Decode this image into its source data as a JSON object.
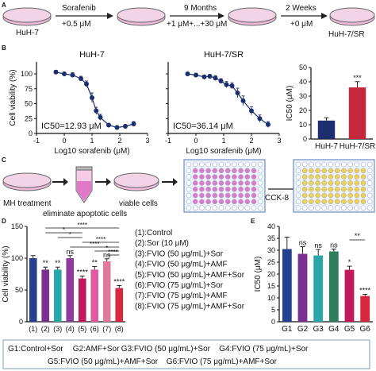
{
  "panel_letters": {
    "a": "A",
    "b": "B",
    "c": "C",
    "d": "D",
    "e": "E"
  },
  "panel_a": {
    "cells_start": "HuH-7",
    "step1_top": "Sorafenib",
    "step1_bottom": "+0.5 μM",
    "step2_top": "9 Months",
    "step2_bottom": "+1 μM+...+30 μM",
    "step3_top": "2 Weeks",
    "step3_bottom": "+0 μM",
    "cells_end": "HuH-7/SR"
  },
  "panel_c": {
    "dish1_label": "MH treatment",
    "tube_label": "eliminate apoptotic cells",
    "dish2_label": "viable cells",
    "assay_label": "CCK-8"
  },
  "colors": {
    "navy": "#1c2e6e",
    "red": "#c5283d",
    "pink": "#e07ac8",
    "yellow": "#f2d24a",
    "dish": "#e8b9d6"
  },
  "legend_e_line1": [
    {
      "text": "G1:Control+Sor",
      "color": "#24408e"
    },
    {
      "text": "G2:AMF+Sor",
      "color": "#7b2f8e"
    },
    {
      "text": "G3:FVIO (50 μg/mL)+Sor",
      "color": "#2aa6a8"
    },
    {
      "text": "G4:FVIO (75 μg/mL)+Sor",
      "color": "#d13a9b"
    }
  ],
  "legend_e_line2": [
    {
      "text": "G5:FVIO (50 μg/mL)+AMF+Sor",
      "color": "#c2185b"
    },
    {
      "text": "G6:FVIO (75 μg/mL)+AMF+Sor",
      "color": "#d7263d"
    }
  ],
  "chart_data": [
    {
      "type": "scatter",
      "panel": "B-left",
      "title": "HuH-7",
      "xlabel": "Log10 sorafenib (μM)",
      "ylabel": "Cell viability (%)",
      "xlim": [
        -1,
        3
      ],
      "ylim": [
        0,
        120
      ],
      "xticks": [
        "-1",
        "0",
        "1",
        "2",
        "3"
      ],
      "yticks": [
        "0",
        "25",
        "50",
        "75",
        "100"
      ],
      "x": [
        -0.3,
        0.0,
        0.3,
        0.6,
        0.8,
        1.0,
        1.15,
        1.3,
        1.6,
        1.9,
        2.2,
        2.5
      ],
      "y": [
        103,
        100,
        98,
        92,
        83,
        60,
        38,
        27,
        14,
        10,
        12,
        16
      ],
      "err": [
        3,
        3,
        4,
        4,
        5,
        8,
        6,
        5,
        3,
        3,
        3,
        4
      ],
      "annotation": "IC50=12.93 μM",
      "color": "#1c2e6e"
    },
    {
      "type": "scatter",
      "panel": "B-mid",
      "title": "HuH-7/SR",
      "xlabel": "Log10 sorafenib (μM)",
      "ylabel": "",
      "xlim": [
        -1,
        3
      ],
      "ylim": [
        0,
        120
      ],
      "xticks": [
        "-1",
        "0",
        "1",
        "2",
        "3"
      ],
      "x": [
        -0.3,
        0.0,
        0.3,
        0.5,
        0.7,
        0.9,
        1.1,
        1.3,
        1.5,
        1.7,
        2.0,
        2.3,
        2.6
      ],
      "y": [
        100,
        98,
        95,
        96,
        93,
        88,
        82,
        80,
        68,
        55,
        38,
        25,
        15
      ],
      "err": [
        3,
        3,
        3,
        3,
        4,
        4,
        5,
        5,
        8,
        8,
        7,
        6,
        5
      ],
      "annotation": "IC50=36.14 μM",
      "color": "#1c2e6e"
    },
    {
      "type": "bar",
      "panel": "B-right",
      "ylabel": "IC50 (μM)",
      "ylim": [
        0,
        50
      ],
      "yticks": [
        "0",
        "10",
        "20",
        "30",
        "40",
        "50"
      ],
      "categories": [
        "HuH-7",
        "HuH-7/SR"
      ],
      "values": [
        12.9,
        36.1
      ],
      "err": [
        2,
        4
      ],
      "colors": [
        "#1c2e6e",
        "#c5283d"
      ],
      "significance": [
        "",
        "***"
      ]
    },
    {
      "type": "bar",
      "panel": "D",
      "ylabel": "Cell viability (%)",
      "ylim": [
        0,
        150
      ],
      "yticks": [
        "0",
        "50",
        "100",
        "150"
      ],
      "categories": [
        "(1)",
        "(2)",
        "(3)",
        "(4)",
        "(5)",
        "(6)",
        "(7)",
        "(8)"
      ],
      "values": [
        100,
        82,
        82,
        100,
        68,
        82,
        95,
        53
      ],
      "err": [
        4,
        4,
        4,
        4,
        4,
        5,
        4,
        4
      ],
      "colors": [
        "#24408e",
        "#7b2f8e",
        "#2aa6a8",
        "#8e3a9e",
        "#c2185b",
        "#e05aa0",
        "#e07a9c",
        "#d7263d"
      ],
      "significance": [
        "",
        "**",
        "**",
        "ns",
        "****",
        "**",
        "ns",
        "****"
      ],
      "brackets": [
        "*",
        "*",
        "****",
        "****",
        "****",
        "*",
        "****"
      ],
      "legend": [
        "(1):Control",
        "(2):Sor (10 μM)",
        "(3):FVIO (50 μg/mL)+Sor",
        "(4):FVIO (50 μg/mL)+AMF",
        "(5):FVIO (50 μg/mL)+AMF+Sor",
        "(6):FVIO (75 μg/mL)+Sor",
        "(7):FVIO (75 μg/mL)+AMF",
        "(8):FVIO (75 μg/mL)+AMF+Sor"
      ]
    },
    {
      "type": "bar",
      "panel": "E",
      "ylabel": "IC50 (μM)",
      "ylim": [
        0,
        40
      ],
      "yticks": [
        "0",
        "5",
        "10",
        "15",
        "20",
        "25",
        "30",
        "35",
        "40"
      ],
      "categories": [
        "G1",
        "G2",
        "G3",
        "G4",
        "G5",
        "G6"
      ],
      "values": [
        30.5,
        28.5,
        27.8,
        29.5,
        21.8,
        10.8
      ],
      "err": [
        5,
        3,
        2.5,
        1,
        1.5,
        0.7
      ],
      "colors": [
        "#24408e",
        "#7b2f8e",
        "#2aa6a8",
        "#2e7d5b",
        "#c2185b",
        "#d7263d"
      ],
      "significance": [
        "",
        "ns",
        "ns",
        "ns",
        "*",
        "****"
      ],
      "bracket": "**"
    }
  ]
}
